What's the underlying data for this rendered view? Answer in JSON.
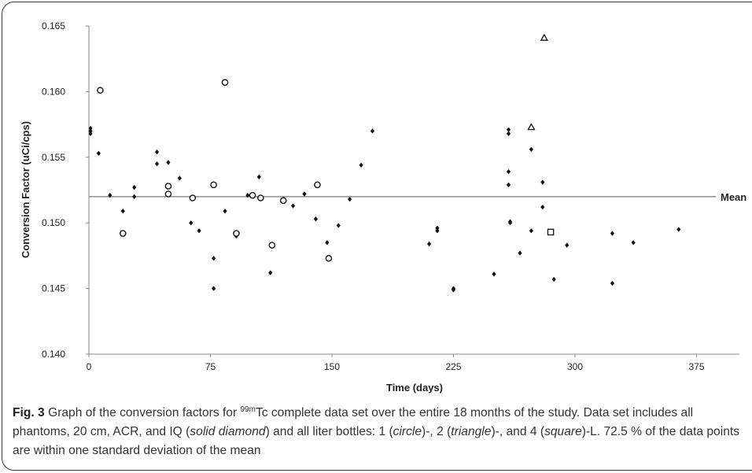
{
  "chart_data": {
    "type": "scatter",
    "title": "",
    "xlabel": "Time (days)",
    "ylabel": "Conversion Factor (uCi/cps)",
    "xlim": [
      0,
      405
    ],
    "ylim": [
      0.14,
      0.165
    ],
    "x_ticks": [
      0,
      75,
      150,
      225,
      300,
      375
    ],
    "y_ticks": [
      0.14,
      0.145,
      0.15,
      0.155,
      0.16,
      0.165
    ],
    "grid": false,
    "reference_line": {
      "label": "Mean",
      "value": 0.152
    },
    "series": [
      {
        "marker": "diamond-filled",
        "points": [
          [
            1,
            0.1572
          ],
          [
            1,
            0.157
          ],
          [
            1,
            0.1568
          ],
          [
            6,
            0.1553
          ],
          [
            13,
            0.1521
          ],
          [
            21,
            0.1509
          ],
          [
            28,
            0.1527
          ],
          [
            28,
            0.152
          ],
          [
            42,
            0.1554
          ],
          [
            42,
            0.1545
          ],
          [
            49,
            0.1546
          ],
          [
            56,
            0.1534
          ],
          [
            63,
            0.15
          ],
          [
            68,
            0.1494
          ],
          [
            77,
            0.1473
          ],
          [
            77,
            0.145
          ],
          [
            84,
            0.1509
          ],
          [
            91,
            0.149
          ],
          [
            98,
            0.1521
          ],
          [
            105,
            0.1535
          ],
          [
            112,
            0.1462
          ],
          [
            126,
            0.1513
          ],
          [
            133,
            0.1522
          ],
          [
            140,
            0.1503
          ],
          [
            147,
            0.1485
          ],
          [
            154,
            0.1498
          ],
          [
            161,
            0.1518
          ],
          [
            168,
            0.1544
          ],
          [
            175,
            0.157
          ],
          [
            210,
            0.1484
          ],
          [
            215,
            0.1496
          ],
          [
            215,
            0.1494
          ],
          [
            225,
            0.145
          ],
          [
            225,
            0.1449
          ],
          [
            250,
            0.1461
          ],
          [
            259,
            0.1571
          ],
          [
            259,
            0.1568
          ],
          [
            259,
            0.1539
          ],
          [
            259,
            0.1529
          ],
          [
            260,
            0.15
          ],
          [
            260,
            0.1501
          ],
          [
            266,
            0.1477
          ],
          [
            273,
            0.1556
          ],
          [
            273,
            0.1494
          ],
          [
            280,
            0.1531
          ],
          [
            280,
            0.1512
          ],
          [
            287,
            0.1457
          ],
          [
            295,
            0.1483
          ],
          [
            323,
            0.1492
          ],
          [
            323,
            0.1454
          ],
          [
            336,
            0.1485
          ],
          [
            364,
            0.1495
          ]
        ]
      },
      {
        "marker": "circle-open",
        "points": [
          [
            7,
            0.1601
          ],
          [
            21,
            0.1492
          ],
          [
            49,
            0.1528
          ],
          [
            49,
            0.1522
          ],
          [
            64,
            0.1519
          ],
          [
            77,
            0.1529
          ],
          [
            84,
            0.1607
          ],
          [
            91,
            0.1492
          ],
          [
            101,
            0.1521
          ],
          [
            106,
            0.1519
          ],
          [
            113,
            0.1483
          ],
          [
            120,
            0.1517
          ],
          [
            141,
            0.1529
          ],
          [
            148,
            0.1473
          ]
        ]
      },
      {
        "marker": "triangle-open",
        "points": [
          [
            273,
            0.1573
          ],
          [
            281,
            0.1641
          ]
        ]
      },
      {
        "marker": "square-open",
        "points": [
          [
            285,
            0.1493
          ]
        ]
      }
    ]
  },
  "caption": {
    "fig_label": "Fig. 3",
    "t1": " Graph of the conversion factors for ",
    "isotope_sup": "99m",
    "isotope": "Tc",
    "t2": " complete data set over the entire 18 months of the study. Data set includes all phantoms, 20 cm, ACR, and IQ (",
    "solid_diamond": "solid diamond",
    "t3": ") and all liter bottles: 1 (",
    "circle": "circle",
    "t4": ")-, 2 (",
    "triangle": "triangle",
    "t5": ")-, and 4 (",
    "square": "square",
    "t6": ")-L. 72.5 % of the data points are within one standard deviation of the mean"
  },
  "colors": {
    "marker": "#111111",
    "axis": "#888888",
    "text": "#333333"
  }
}
